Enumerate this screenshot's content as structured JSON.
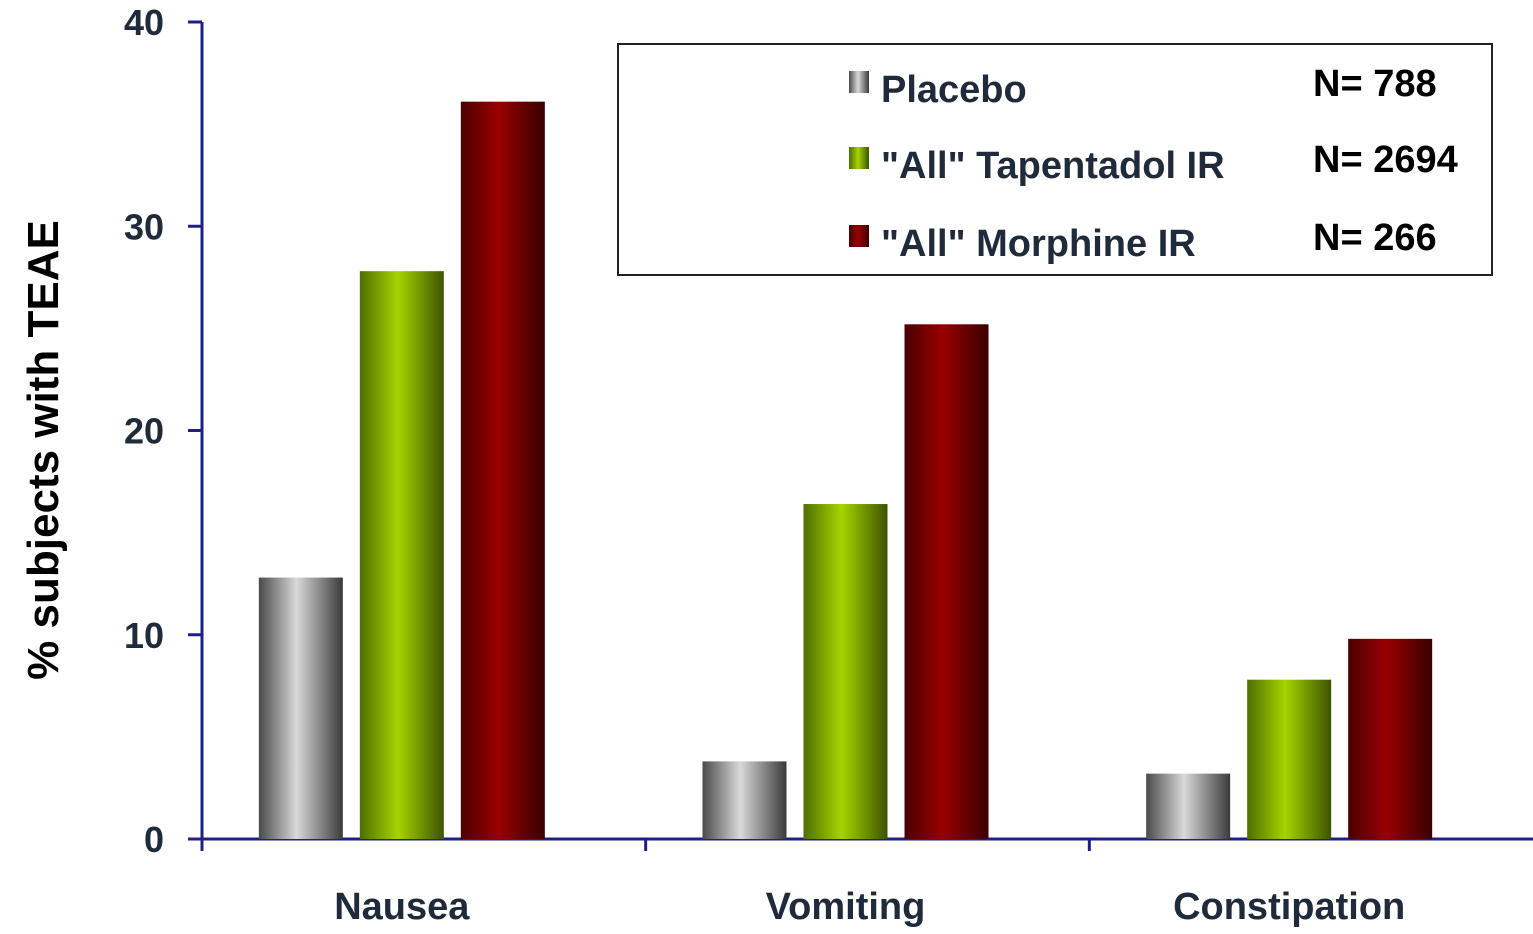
{
  "chart_data": {
    "type": "bar",
    "title": "",
    "xlabel": "",
    "ylabel": "% subjects with TEAE",
    "ylim": [
      0,
      40
    ],
    "yticks": [
      0,
      10,
      20,
      30,
      40
    ],
    "grid": false,
    "legend_position": "top-right",
    "categories": [
      "Nausea",
      "Vomiting",
      "Constipation"
    ],
    "series": [
      {
        "name": "Placebo",
        "n_label": "N= 788",
        "values": [
          12.8,
          3.8,
          3.2
        ],
        "color": "#8c8c8c"
      },
      {
        "name": "\"All\" Tapentadol IR",
        "n_label": "N= 2694",
        "values": [
          27.8,
          16.4,
          7.8
        ],
        "color": "#8fbf00"
      },
      {
        "name": "\"All\" Morphine IR",
        "n_label": "N= 266",
        "values": [
          36.1,
          25.2,
          9.8
        ],
        "color": "#8b0000"
      }
    ],
    "colors": {
      "axis": "#1f1f8a",
      "text": "#1f2a3a"
    }
  }
}
